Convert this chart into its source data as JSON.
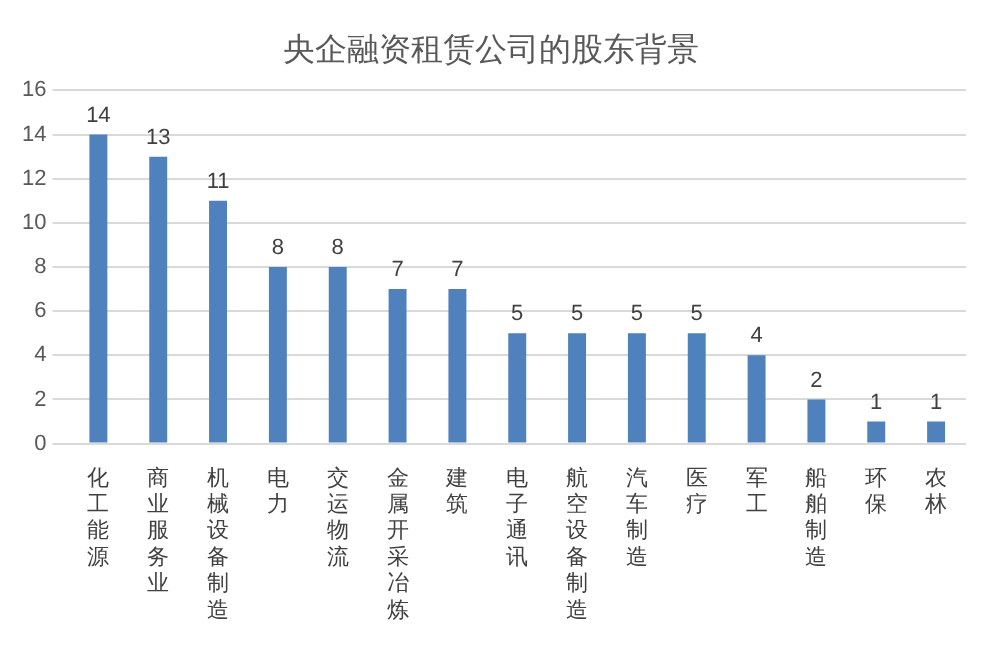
{
  "chart_data": {
    "type": "bar",
    "title": "央企融资租赁公司的股东背景",
    "categories": [
      "化工能源",
      "商业服务业",
      "机械设备制造",
      "电力",
      "交运物流",
      "金属开采冶炼",
      "建筑",
      "电子通讯",
      "航空设备制造",
      "汽车制造",
      "医疗",
      "军工",
      "船舶制造",
      "环保",
      "农林"
    ],
    "values": [
      14,
      13,
      11,
      8,
      8,
      7,
      7,
      5,
      5,
      5,
      5,
      4,
      2,
      1,
      1
    ],
    "color": "#4f81bd",
    "ylim": [
      0,
      16
    ],
    "yticks": [
      0,
      2,
      4,
      6,
      8,
      10,
      12,
      14,
      16
    ],
    "grid": "y",
    "data_labels": true,
    "legend": false
  }
}
